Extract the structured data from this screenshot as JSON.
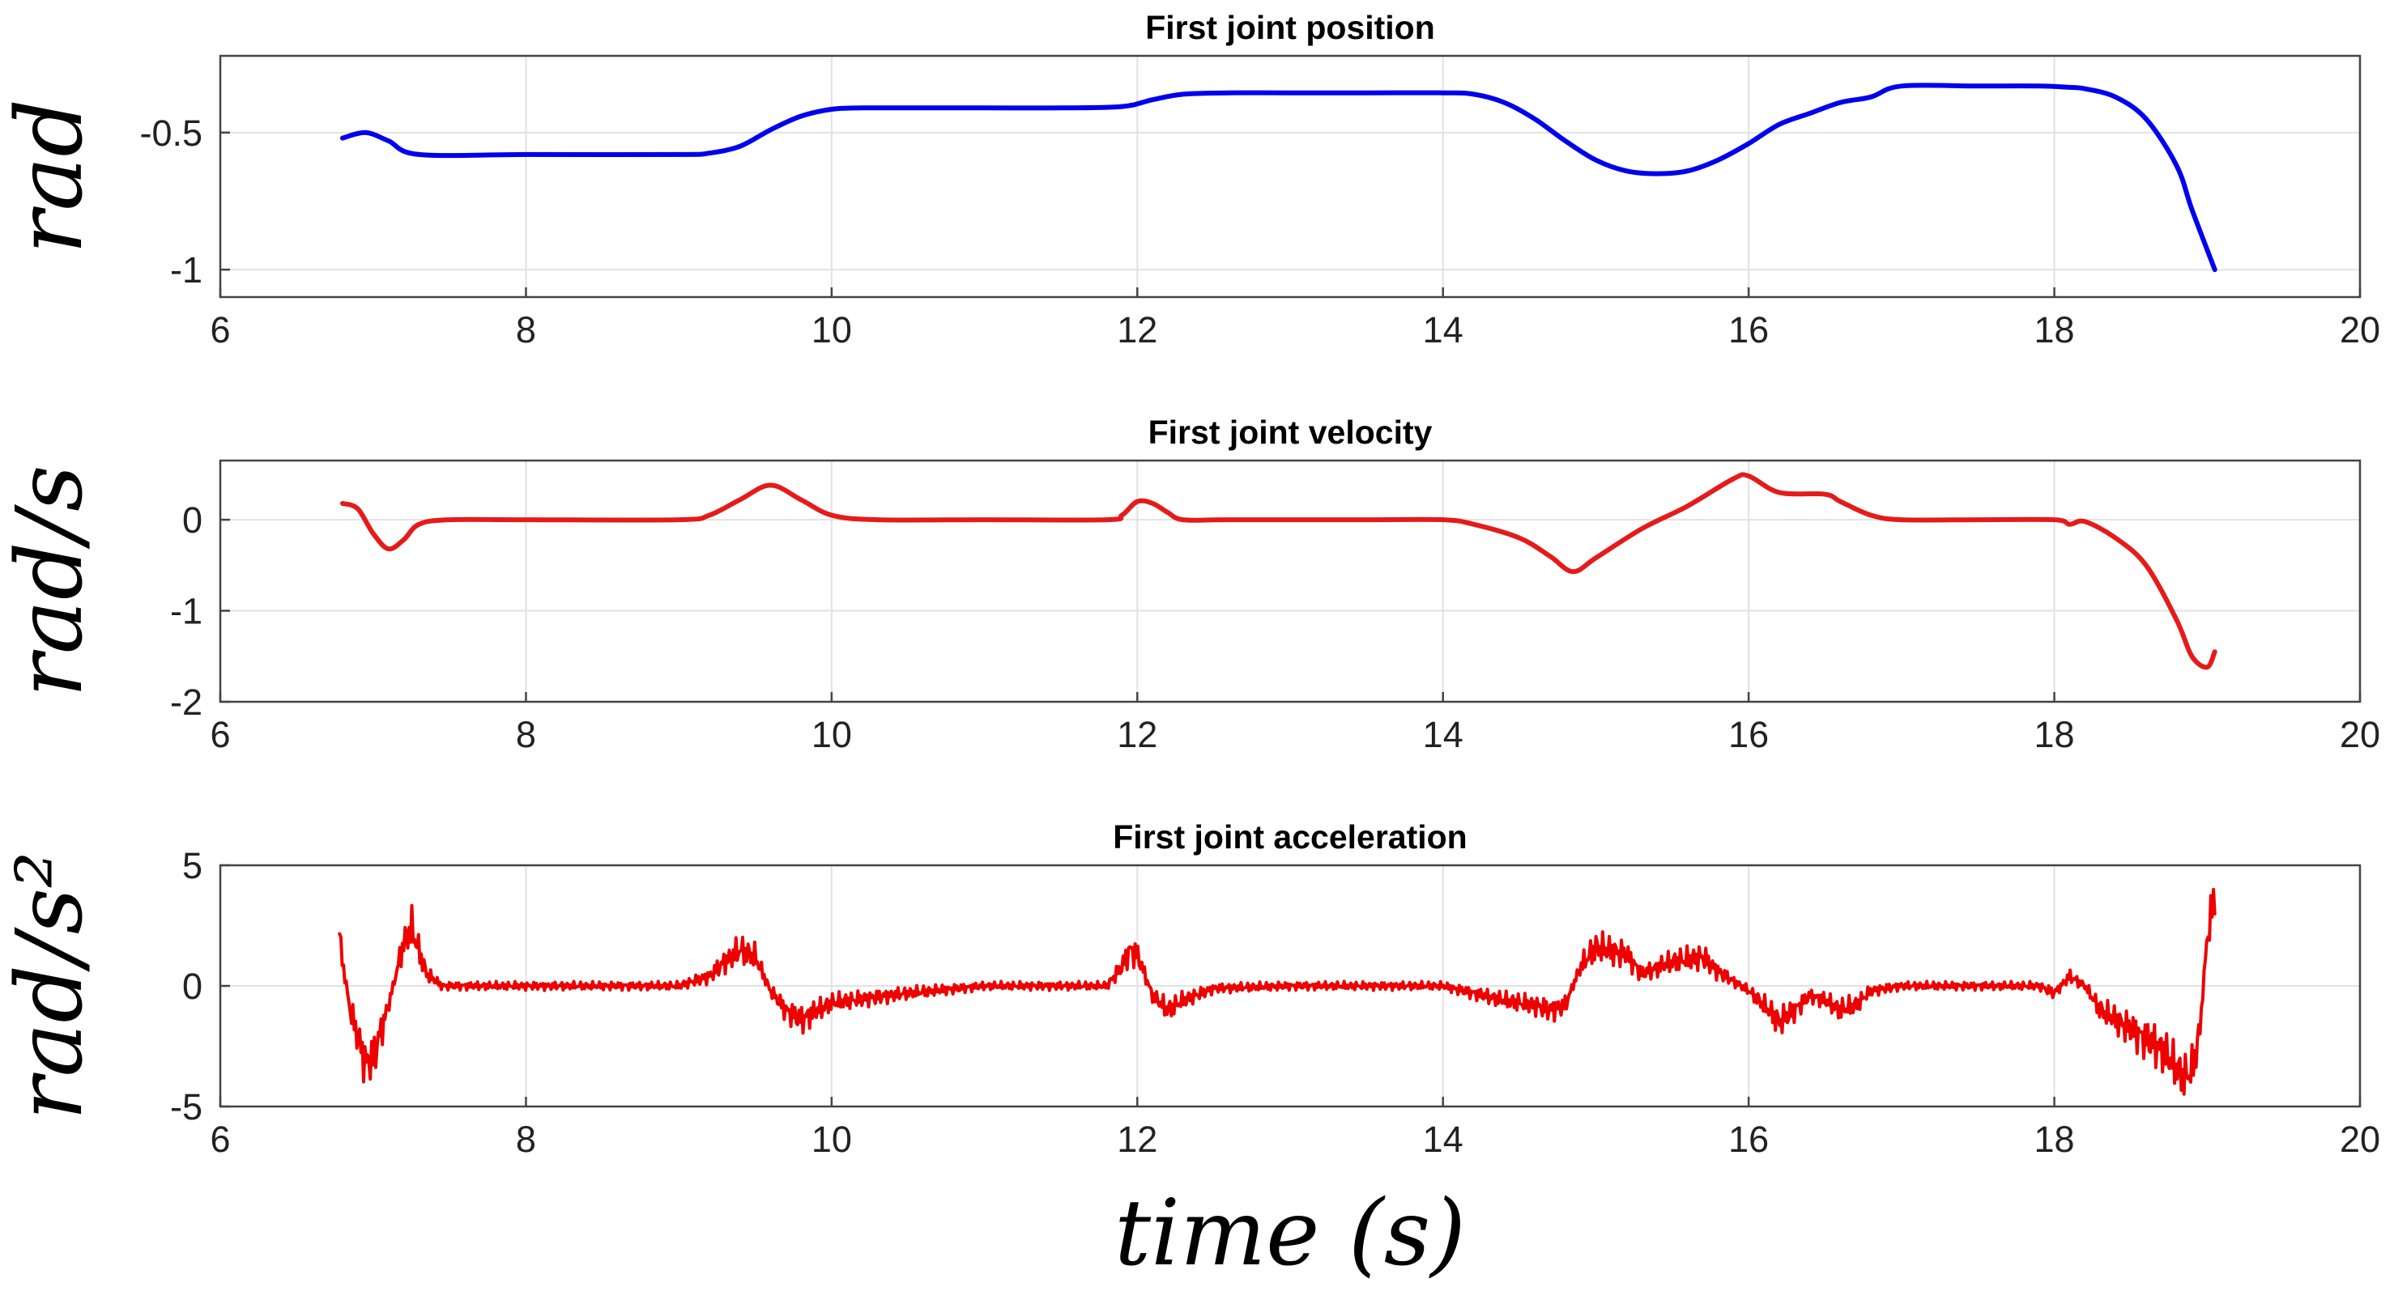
{
  "figure": {
    "xlabel": "time (s)",
    "xlim": [
      6,
      20
    ],
    "xticks": [
      6,
      8,
      10,
      12,
      14,
      16,
      18,
      20
    ]
  },
  "chart_data": [
    {
      "type": "line",
      "title": "First joint position",
      "ylabel": "rad",
      "xlabel": "",
      "xlim": [
        6,
        20
      ],
      "ylim": [
        -1.1,
        -0.22
      ],
      "yticks": [
        -1,
        -0.5
      ],
      "ytick_labels": [
        "-1",
        "-0.5"
      ],
      "grid": true,
      "series": [
        {
          "name": "position",
          "color": "#0000ee",
          "x": [
            6.8,
            6.95,
            7.1,
            7.3,
            8.0,
            9.0,
            9.2,
            9.4,
            9.6,
            9.8,
            10.0,
            10.2,
            10.5,
            11.0,
            11.5,
            11.9,
            12.1,
            12.3,
            12.6,
            13.0,
            13.5,
            14.0,
            14.2,
            14.4,
            14.6,
            14.8,
            15.0,
            15.2,
            15.4,
            15.6,
            15.8,
            16.0,
            16.2,
            16.4,
            16.6,
            16.8,
            17.0,
            17.5,
            17.9,
            18.1,
            18.2,
            18.4,
            18.6,
            18.8,
            18.9,
            19.05
          ],
          "y": [
            -0.52,
            -0.5,
            -0.53,
            -0.58,
            -0.58,
            -0.58,
            -0.575,
            -0.55,
            -0.49,
            -0.44,
            -0.415,
            -0.41,
            -0.41,
            -0.41,
            -0.41,
            -0.405,
            -0.38,
            -0.36,
            -0.355,
            -0.355,
            -0.355,
            -0.355,
            -0.36,
            -0.39,
            -0.45,
            -0.53,
            -0.6,
            -0.64,
            -0.65,
            -0.64,
            -0.6,
            -0.54,
            -0.47,
            -0.43,
            -0.39,
            -0.37,
            -0.33,
            -0.33,
            -0.33,
            -0.335,
            -0.34,
            -0.37,
            -0.45,
            -0.62,
            -0.78,
            -1.0
          ]
        }
      ]
    },
    {
      "type": "line",
      "title": "First joint velocity",
      "ylabel": "rad/s",
      "xlabel": "",
      "xlim": [
        6,
        20
      ],
      "ylim": [
        -2,
        0.65
      ],
      "yticks": [
        -2,
        -1,
        0
      ],
      "ytick_labels": [
        "-2",
        "-1",
        "0"
      ],
      "grid": true,
      "series": [
        {
          "name": "velocity",
          "color": "#e51b1b",
          "x": [
            6.8,
            6.9,
            7.0,
            7.1,
            7.2,
            7.3,
            7.5,
            8.0,
            9.0,
            9.2,
            9.4,
            9.6,
            9.8,
            10.0,
            10.3,
            11.0,
            11.8,
            11.9,
            12.0,
            12.1,
            12.2,
            12.3,
            12.6,
            13.5,
            14.0,
            14.2,
            14.5,
            14.7,
            14.85,
            15.0,
            15.3,
            15.6,
            15.9,
            16.0,
            16.2,
            16.5,
            16.6,
            16.8,
            17.0,
            17.5,
            18.0,
            18.1,
            18.2,
            18.4,
            18.6,
            18.8,
            18.9,
            19.0,
            19.05
          ],
          "y": [
            0.18,
            0.12,
            -0.15,
            -0.32,
            -0.22,
            -0.05,
            0.0,
            0.0,
            0.0,
            0.05,
            0.22,
            0.38,
            0.22,
            0.05,
            0.0,
            0.0,
            0.0,
            0.05,
            0.2,
            0.18,
            0.08,
            0.0,
            0.0,
            0.0,
            0.0,
            -0.05,
            -0.2,
            -0.4,
            -0.57,
            -0.42,
            -0.1,
            0.15,
            0.45,
            0.48,
            0.3,
            0.28,
            0.2,
            0.05,
            0.0,
            0.0,
            0.0,
            -0.05,
            -0.02,
            -0.2,
            -0.5,
            -1.1,
            -1.5,
            -1.62,
            -1.45
          ]
        }
      ]
    },
    {
      "type": "line",
      "title": "First joint acceleration",
      "ylabel": "rad/s²",
      "xlabel": "",
      "xlim": [
        6,
        20
      ],
      "ylim": [
        -5,
        5
      ],
      "yticks": [
        -5,
        0,
        5
      ],
      "ytick_labels": [
        "-5",
        "0",
        "5"
      ],
      "grid": true,
      "series": [
        {
          "name": "acceleration",
          "color": "#ee0000",
          "x": [
            6.78,
            6.8,
            6.85,
            6.95,
            7.0,
            7.1,
            7.2,
            7.25,
            7.35,
            7.45,
            8.0,
            9.0,
            9.2,
            9.3,
            9.4,
            9.5,
            9.6,
            9.7,
            9.8,
            10.0,
            10.5,
            11.0,
            11.8,
            11.9,
            11.95,
            12.0,
            12.1,
            12.2,
            12.3,
            12.5,
            13.0,
            13.5,
            14.0,
            14.2,
            14.4,
            14.6,
            14.7,
            14.8,
            14.9,
            15.0,
            15.2,
            15.3,
            15.5,
            15.7,
            15.8,
            15.9,
            16.0,
            16.1,
            16.2,
            16.3,
            16.4,
            16.5,
            16.6,
            16.7,
            16.8,
            17.0,
            17.5,
            17.9,
            18.0,
            18.1,
            18.2,
            18.3,
            18.5,
            18.7,
            18.8,
            18.85,
            18.9,
            18.95,
            19.0,
            19.05
          ],
          "y": [
            2.0,
            1.0,
            -1.0,
            -3.2,
            -3.0,
            -0.8,
            1.8,
            2.4,
            0.5,
            0.0,
            0.0,
            0.0,
            0.4,
            1.0,
            1.5,
            1.2,
            -0.2,
            -1.0,
            -1.4,
            -0.7,
            -0.3,
            0.0,
            0.0,
            0.8,
            1.5,
            1.3,
            -0.4,
            -1.0,
            -0.6,
            -0.1,
            0.0,
            0.0,
            0.0,
            -0.3,
            -0.6,
            -0.8,
            -1.0,
            -0.8,
            0.8,
            1.6,
            1.3,
            0.5,
            1.0,
            1.2,
            0.6,
            0.2,
            -0.2,
            -0.8,
            -1.5,
            -1.0,
            -0.4,
            -0.6,
            -1.0,
            -0.8,
            -0.2,
            0.0,
            0.0,
            0.0,
            -0.3,
            0.4,
            0.0,
            -1.0,
            -1.8,
            -2.6,
            -3.4,
            -3.8,
            -3.5,
            -2.0,
            2.0,
            3.8
          ]
        }
      ]
    }
  ]
}
